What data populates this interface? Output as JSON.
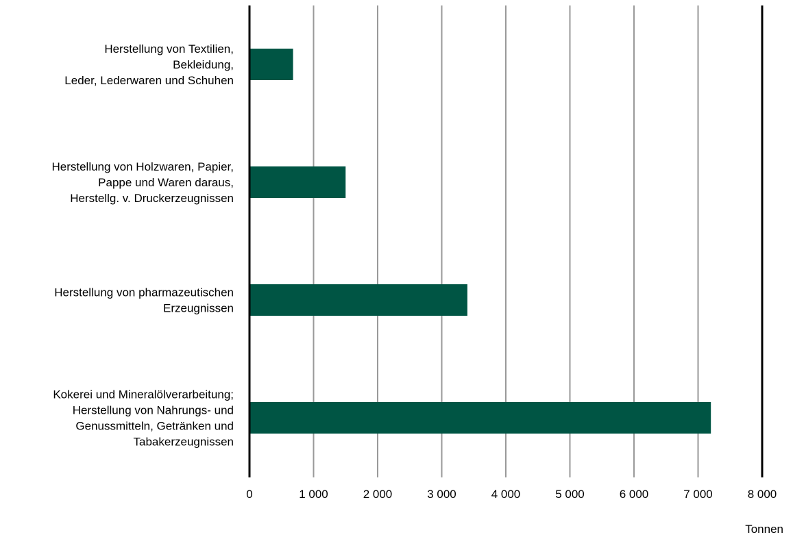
{
  "chart_data": {
    "type": "bar",
    "orientation": "horizontal",
    "categories": [
      [
        "Herstellung von Textilien,",
        "Bekleidung,",
        "Leder, Lederwaren und Schuhen"
      ],
      [
        "Herstellung von Holzwaren, Papier,",
        "Pappe und Waren daraus,",
        "Herstellg. v. Druckerzeugnissen"
      ],
      [
        "Herstellung von pharmazeutischen",
        "Erzeugnissen"
      ],
      [
        "Kokerei und Mineralölverarbeitung;",
        "Herstellung von Nahrungs- und",
        "Genussmitteln, Getränken und",
        "Tabakerzeugnissen"
      ]
    ],
    "values": [
      680,
      1500,
      3400,
      7200
    ],
    "xlim": [
      0,
      8000
    ],
    "xticks": [
      0,
      1000,
      2000,
      3000,
      4000,
      5000,
      6000,
      7000,
      8000
    ],
    "xtick_labels": [
      "0",
      "1 000",
      "2 000",
      "3 000",
      "4 000",
      "5 000",
      "6 000",
      "7 000",
      "8 000"
    ],
    "xlabel": "Tonnen",
    "title": "",
    "grid": true,
    "bar_color": "#005544",
    "grid_color": "#999999",
    "axis_color": "#000000"
  }
}
